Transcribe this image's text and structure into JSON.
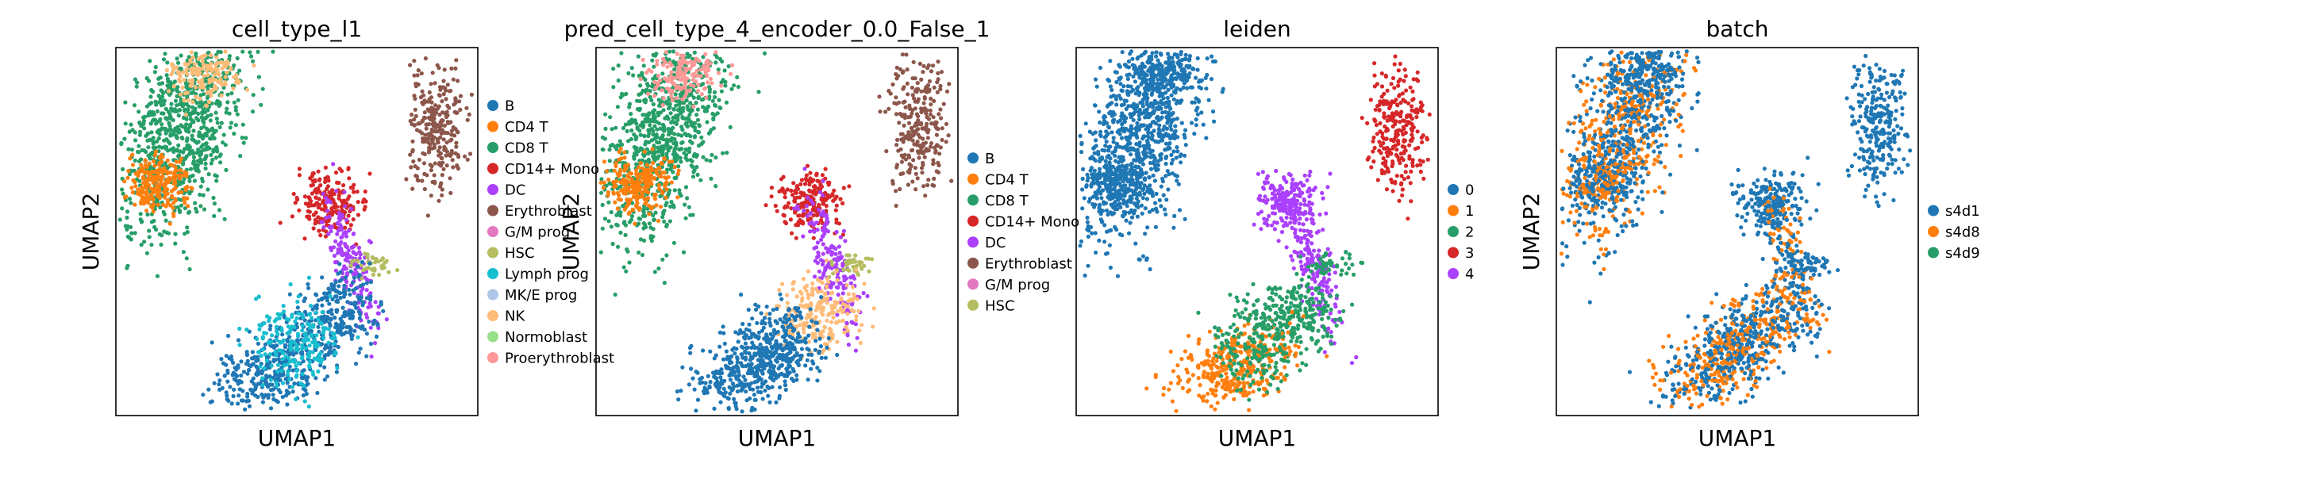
{
  "figure": "UMAP embeddings colored by annotation",
  "chart_data": [
    {
      "type": "scatter",
      "title": "cell_type_l1",
      "xlabel": "UMAP1",
      "ylabel": "UMAP2",
      "legend_position": "right",
      "grid": false,
      "series": [
        {
          "name": "B",
          "color": "#1f77b4"
        },
        {
          "name": "CD4 T",
          "color": "#ff7f0e"
        },
        {
          "name": "CD8 T",
          "color": "#279e68"
        },
        {
          "name": "CD14+ Mono",
          "color": "#d62728"
        },
        {
          "name": "DC",
          "color": "#aa40fc"
        },
        {
          "name": "Erythroblast",
          "color": "#8c564b"
        },
        {
          "name": "G/M prog",
          "color": "#e377c2"
        },
        {
          "name": "HSC",
          "color": "#b5bd61"
        },
        {
          "name": "Lymph prog",
          "color": "#17becf"
        },
        {
          "name": "MK/E prog",
          "color": "#aec7e8"
        },
        {
          "name": "NK",
          "color": "#ffbb78"
        },
        {
          "name": "Normoblast",
          "color": "#98df8a"
        },
        {
          "name": "Proerythroblast",
          "color": "#ff9896"
        }
      ]
    },
    {
      "type": "scatter",
      "title": "pred_cell_type_4_encoder_0.0_False_1",
      "xlabel": "UMAP1",
      "ylabel": "UMAP2",
      "legend_position": "right",
      "grid": false,
      "series": [
        {
          "name": "B",
          "color": "#1f77b4"
        },
        {
          "name": "CD4 T",
          "color": "#ff7f0e"
        },
        {
          "name": "CD8 T",
          "color": "#279e68"
        },
        {
          "name": "CD14+ Mono",
          "color": "#d62728"
        },
        {
          "name": "DC",
          "color": "#aa40fc"
        },
        {
          "name": "Erythroblast",
          "color": "#8c564b"
        },
        {
          "name": "G/M prog",
          "color": "#e377c2"
        },
        {
          "name": "HSC",
          "color": "#b5bd61"
        }
      ]
    },
    {
      "type": "scatter",
      "title": "leiden",
      "xlabel": "UMAP1",
      "ylabel": "",
      "legend_position": "right",
      "grid": false,
      "series": [
        {
          "name": "0",
          "color": "#1f77b4"
        },
        {
          "name": "1",
          "color": "#ff7f0e"
        },
        {
          "name": "2",
          "color": "#279e68"
        },
        {
          "name": "3",
          "color": "#d62728"
        },
        {
          "name": "4",
          "color": "#aa40fc"
        }
      ]
    },
    {
      "type": "scatter",
      "title": "batch",
      "xlabel": "UMAP1",
      "ylabel": "UMAP2",
      "legend_position": "right",
      "grid": false,
      "series": [
        {
          "name": "s4d1",
          "color": "#1f77b4"
        },
        {
          "name": "s4d8",
          "color": "#ff7f0e"
        },
        {
          "name": "s4d9",
          "color": "#279e68"
        }
      ]
    }
  ]
}
